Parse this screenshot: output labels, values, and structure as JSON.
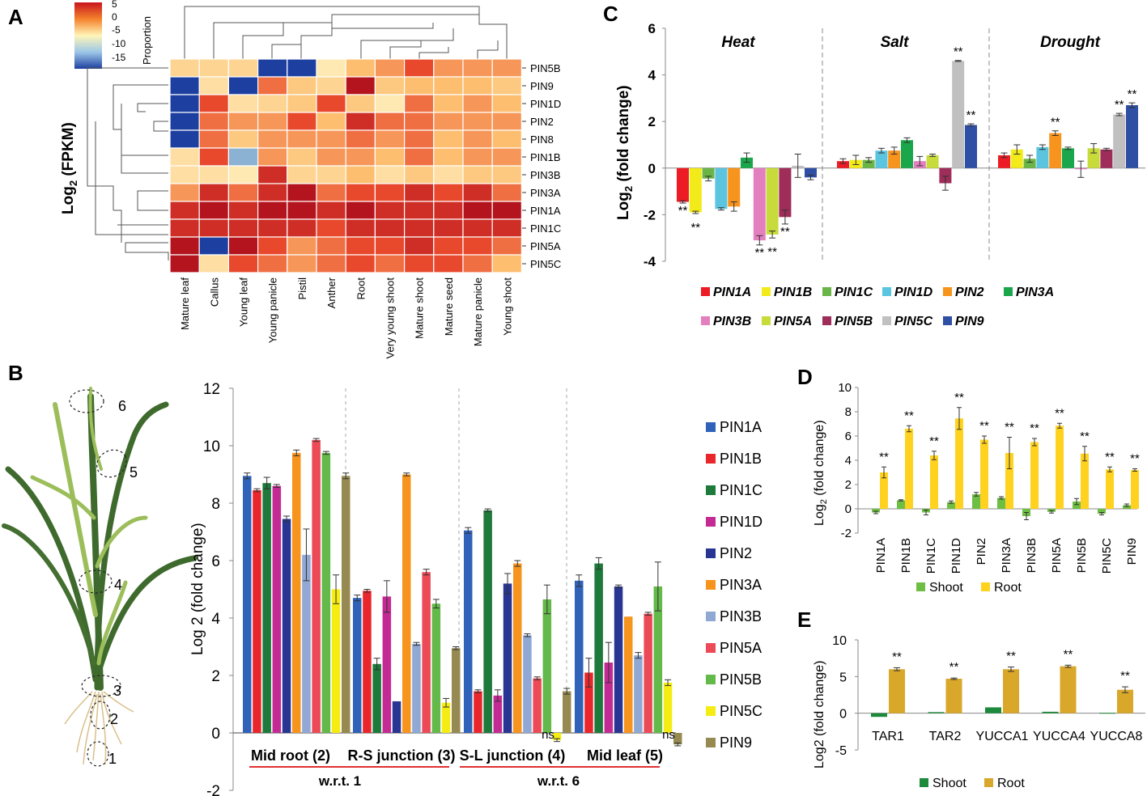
{
  "figure": {
    "panel_labels": [
      "A",
      "B",
      "C",
      "D",
      "E"
    ]
  },
  "colors": {
    "PIN1A": "#2f62b8",
    "PIN1B": "#e8262c",
    "PIN1C": "#1e7a3a",
    "PIN1D": "#c42a93",
    "PIN2": "#283593",
    "PIN3A": "#f7941d",
    "PIN3B": "#8fa8d4",
    "PIN5A": "#ec4a57",
    "PIN5B": "#63b94a",
    "PIN5C": "#f5ec14",
    "PIN9": "#968a52",
    "c_PIN1A": "#ed1c24",
    "c_PIN1B": "#f3ea1a",
    "c_PIN1C": "#6ab545",
    "c_PIN1D": "#5bc5e0",
    "c_PIN2": "#f7941d",
    "c_PIN3A": "#1aa64a",
    "c_PIN3B": "#e37fbf",
    "c_PIN5A": "#c7db3a",
    "c_PIN5B": "#9e2d5a",
    "c_PIN5C": "#c0c0c0",
    "c_PIN9": "#2e4fa3",
    "shoot_d": "#6fbe44",
    "root_d": "#ffd21f",
    "shoot_e": "#1c8a3a",
    "root_e": "#d9a72a",
    "underline": "#e03030",
    "plant_leaf": "#3f6a2d",
    "plant_leaf_light": "#9cbe5a"
  },
  "panelA": {
    "legend_ticks": [
      "5",
      "0",
      "-5",
      "-10",
      "-15"
    ],
    "legend_title": "Proportion",
    "ylabel_pre": "Log",
    "ylabel_sub": "2",
    "ylabel_post": " (FPKM)",
    "chart_data": {
      "type": "heatmap",
      "rows": [
        "PIN5B",
        "PIN9",
        "PIN1D",
        "PIN2",
        "PIN8",
        "PIN1B",
        "PIN3B",
        "PIN3A",
        "PIN1A",
        "PIN1C",
        "PIN5A",
        "PIN5C"
      ],
      "columns": [
        "Mature leaf",
        "Callus",
        "Young leaf",
        "Young panicle",
        "Pistil",
        "Anther",
        "Root",
        "Very young shoot",
        "Mature shoot",
        "Mature seed",
        "Mature panicle",
        "Young shoot"
      ],
      "scale_range": [
        -15,
        5
      ],
      "values": [
        [
          -2,
          -2,
          -2,
          -15,
          -15,
          -4,
          0,
          1,
          3,
          1,
          1,
          1
        ],
        [
          -15,
          -3,
          -15,
          2,
          -1,
          -2,
          5,
          -1,
          0,
          0,
          0,
          -1
        ],
        [
          -15,
          3,
          -3,
          -2,
          -1,
          3,
          -1,
          -4,
          2,
          0,
          1,
          0
        ],
        [
          -15,
          2,
          1,
          1,
          3,
          0,
          4,
          2,
          2,
          1,
          1,
          1
        ],
        [
          -15,
          2,
          -1,
          1,
          1,
          1,
          2,
          1,
          2,
          0,
          1,
          0
        ],
        [
          -3,
          3,
          -9,
          1,
          -1,
          1,
          1,
          0,
          2,
          0,
          1,
          1
        ],
        [
          -3,
          -3,
          -4,
          4,
          -2,
          -2,
          0,
          -3,
          -1,
          -3,
          -1,
          -1
        ],
        [
          1,
          4,
          2,
          4,
          5,
          2,
          3,
          3,
          4,
          3,
          4,
          2
        ],
        [
          4,
          5,
          4,
          5,
          5,
          4,
          5,
          4,
          4,
          4,
          5,
          5
        ],
        [
          4,
          4,
          4,
          4,
          4,
          3,
          4,
          4,
          4,
          4,
          4,
          4
        ],
        [
          5,
          -15,
          5,
          3,
          1,
          2,
          3,
          3,
          4,
          3,
          3,
          2
        ],
        [
          5,
          -3,
          3,
          2,
          1,
          2,
          3,
          2,
          3,
          3,
          2,
          0
        ]
      ]
    }
  },
  "panelB": {
    "ylabel": "Log 2 (fold change)",
    "annotation_ns": "ns",
    "wrt1": "w.r.t. 1",
    "wrt6": "w.r.t. 6",
    "plant_numbers": [
      "1",
      "2",
      "3",
      "4",
      "5",
      "6"
    ],
    "chart_data": {
      "type": "bar",
      "categories": [
        "Mid root (2)",
        "R-S junction (3)",
        "S-L junction (4)",
        "Mid leaf (5)"
      ],
      "ylim": [
        -2,
        12
      ],
      "yticks": [
        "12",
        "10",
        "8",
        "6",
        "4",
        "2",
        "0",
        "-2"
      ],
      "series": [
        {
          "name": "PIN1A",
          "values": [
            8.95,
            4.7,
            7.05,
            5.3
          ],
          "err": [
            0.1,
            0.1,
            0.1,
            0.2
          ]
        },
        {
          "name": "PIN1B",
          "values": [
            8.45,
            4.95,
            1.45,
            2.1
          ],
          "err": [
            0.05,
            0.05,
            0.05,
            0.5
          ]
        },
        {
          "name": "PIN1C",
          "values": [
            8.7,
            2.4,
            7.75,
            5.9
          ],
          "err": [
            0.2,
            0.2,
            0.05,
            0.2
          ]
        },
        {
          "name": "PIN1D",
          "values": [
            8.6,
            4.75,
            1.3,
            2.45
          ],
          "err": [
            0.05,
            0.55,
            0.2,
            0.7
          ]
        },
        {
          "name": "PIN2",
          "values": [
            7.45,
            1.1,
            5.2,
            5.1
          ],
          "err": [
            0.1,
            0,
            0.35,
            0.05
          ]
        },
        {
          "name": "PIN3A",
          "values": [
            9.75,
            9.0,
            5.9,
            4.05
          ],
          "err": [
            0.1,
            0.05,
            0.1,
            0
          ]
        },
        {
          "name": "PIN3B",
          "values": [
            6.2,
            3.1,
            3.4,
            2.7
          ],
          "err": [
            0.9,
            0.05,
            0.05,
            0.1
          ]
        },
        {
          "name": "PIN5A",
          "values": [
            10.2,
            5.6,
            1.9,
            4.15
          ],
          "err": [
            0.05,
            0.1,
            0.05,
            0.05
          ]
        },
        {
          "name": "PIN5B",
          "values": [
            9.75,
            4.5,
            4.65,
            5.1
          ],
          "err": [
            0.05,
            0.15,
            0.5,
            0.85
          ]
        },
        {
          "name": "PIN5C",
          "values": [
            5.0,
            1.05,
            -0.25,
            1.75
          ],
          "err": [
            0.5,
            0.15,
            0.05,
            0.1
          ]
        },
        {
          "name": "PIN9",
          "values": [
            8.95,
            2.95,
            1.45,
            -0.4
          ],
          "err": [
            0.1,
            0.05,
            0.1,
            0.05
          ]
        }
      ]
    }
  },
  "panelC": {
    "ylabel_pre": "Log",
    "ylabel_sub": "2",
    "ylabel_post": " (fold change)",
    "star": "**",
    "chart_data": {
      "type": "bar",
      "categories": [
        "Heat",
        "Salt",
        "Drought"
      ],
      "ylim": [
        -4,
        6
      ],
      "yticks": [
        "6",
        "4",
        "2",
        "0",
        "-2",
        "-4"
      ],
      "series": [
        {
          "name": "PIN1A",
          "values": [
            -1.45,
            0.3,
            0.55
          ],
          "err": [
            0.05,
            0.1,
            0.1
          ],
          "sig": [
            true,
            false,
            false
          ]
        },
        {
          "name": "PIN1B",
          "values": [
            -1.9,
            0.35,
            0.8
          ],
          "err": [
            0.05,
            0.2,
            0.2
          ],
          "sig": [
            true,
            false,
            false
          ]
        },
        {
          "name": "PIN1C",
          "values": [
            -0.45,
            0.35,
            0.4
          ],
          "err": [
            0.1,
            0.1,
            0.15
          ],
          "sig": [
            false,
            false,
            false
          ]
        },
        {
          "name": "PIN1D",
          "values": [
            -1.75,
            0.75,
            0.9
          ],
          "err": [
            0.05,
            0.1,
            0.1
          ],
          "sig": [
            false,
            false,
            false
          ]
        },
        {
          "name": "PIN2",
          "values": [
            -1.65,
            0.75,
            1.5
          ],
          "err": [
            0.2,
            0.15,
            0.1
          ],
          "sig": [
            false,
            false,
            true
          ]
        },
        {
          "name": "PIN3A",
          "values": [
            0.45,
            1.2,
            0.85
          ],
          "err": [
            0.2,
            0.1,
            0.05
          ],
          "sig": [
            false,
            false,
            false
          ]
        },
        {
          "name": "PIN3B",
          "values": [
            -3.1,
            0.3,
            -0.05
          ],
          "err": [
            0.2,
            0.2,
            0.35
          ],
          "sig": [
            true,
            false,
            false
          ]
        },
        {
          "name": "PIN5A",
          "values": [
            -2.85,
            0.55,
            0.85
          ],
          "err": [
            0.15,
            0.05,
            0.2
          ],
          "sig": [
            true,
            false,
            false
          ]
        },
        {
          "name": "PIN5B",
          "values": [
            -2.1,
            -0.65,
            0.8
          ],
          "err": [
            0.3,
            0.3,
            0.05
          ],
          "sig": [
            true,
            false,
            false
          ]
        },
        {
          "name": "PIN5C",
          "values": [
            0.1,
            4.6,
            2.3
          ],
          "err": [
            0.5,
            0.02,
            0.05
          ],
          "sig": [
            false,
            true,
            true
          ]
        },
        {
          "name": "PIN9",
          "values": [
            -0.4,
            1.85,
            2.7
          ],
          "err": [
            0.1,
            0.05,
            0.1
          ],
          "sig": [
            false,
            true,
            true
          ]
        }
      ]
    }
  },
  "panelD": {
    "ylabel_pre": "Log",
    "ylabel_sub": "2",
    "ylabel_post": " (fold change)",
    "star": "**",
    "chart_data": {
      "type": "bar",
      "categories": [
        "PIN1A",
        "PIN1B",
        "PIN1C",
        "PIN1D",
        "PIN2",
        "PIN3A",
        "PIN3B",
        "PIN5A",
        "PIN5B",
        "PIN5C",
        "PIN9"
      ],
      "ylim": [
        -2,
        10
      ],
      "yticks": [
        "10",
        "8",
        "6",
        "4",
        "2",
        "0",
        "-2"
      ],
      "series": [
        {
          "name": "Shoot",
          "values": [
            -0.3,
            0.7,
            -0.3,
            0.55,
            1.2,
            0.9,
            -0.6,
            -0.25,
            0.6,
            -0.4,
            0.3
          ],
          "err": [
            0.1,
            0.05,
            0.2,
            0.1,
            0.15,
            0.1,
            0.3,
            0.1,
            0.25,
            0.1,
            0.1
          ]
        },
        {
          "name": "Root",
          "values": [
            3.0,
            6.6,
            4.4,
            7.45,
            5.7,
            4.6,
            5.5,
            6.85,
            4.55,
            3.25,
            3.2
          ],
          "err": [
            0.45,
            0.25,
            0.35,
            0.9,
            0.3,
            1.3,
            0.3,
            0.2,
            0.6,
            0.2,
            0.1
          ]
        }
      ]
    }
  },
  "panelE": {
    "ylabel": "Log2 (fold change)",
    "star": "**",
    "chart_data": {
      "type": "bar",
      "categories": [
        "TAR1",
        "TAR2",
        "YUCCA1",
        "YUCCA4",
        "YUCCA8"
      ],
      "ylim": [
        -5,
        10
      ],
      "yticks": [
        "10",
        "5",
        "0",
        "-5"
      ],
      "series": [
        {
          "name": "Shoot",
          "values": [
            -0.5,
            0.15,
            0.8,
            0.2,
            0.05
          ],
          "err": [
            0,
            0,
            0,
            0,
            0
          ]
        },
        {
          "name": "Root",
          "values": [
            6.0,
            4.7,
            6.0,
            6.4,
            3.2
          ],
          "err": [
            0.2,
            0.1,
            0.3,
            0.15,
            0.4
          ]
        }
      ]
    }
  }
}
